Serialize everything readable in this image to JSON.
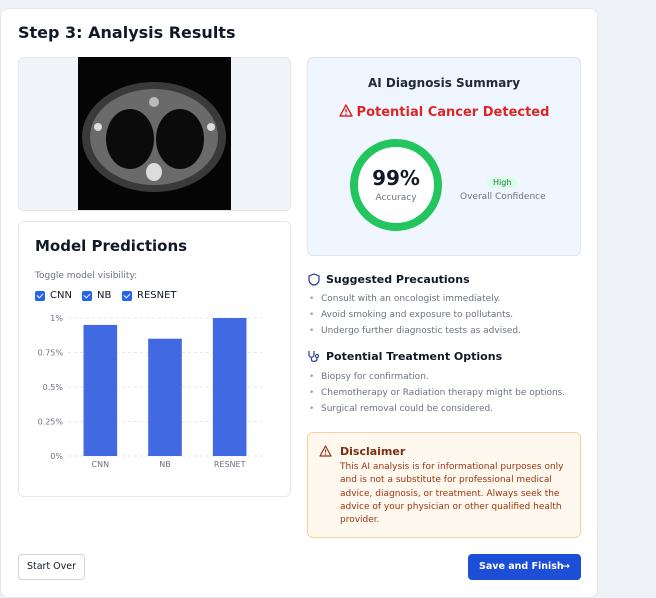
{
  "header": {
    "title": "Step 3: Analysis Results"
  },
  "summary": {
    "title": "AI Diagnosis Summary",
    "status": "Potential Cancer Detected",
    "accuracy": "99%",
    "accuracy_label": "Accuracy",
    "confidence_badge": "High",
    "confidence_label": "Overall Confidence"
  },
  "precautions": {
    "title": "Suggested Precautions",
    "items": [
      "Consult with an oncologist immediately.",
      "Avoid smoking and exposure to pollutants.",
      "Undergo further diagnostic tests as advised."
    ]
  },
  "treatments": {
    "title": "Potential Treatment Options",
    "items": [
      "Biopsy for confirmation.",
      "Chemotherapy or Radiation therapy might be options.",
      "Surgical removal could be considered."
    ]
  },
  "disclaimer": {
    "title": "Disclaimer",
    "text": "This AI analysis is for informational purposes only and is not a substitute for professional medical advice, diagnosis, or treatment. Always seek the advice of your physician or other qualified health provider."
  },
  "buttons": {
    "start_over": "Start Over",
    "save": "Save and Finish"
  },
  "chart_data": {
    "type": "bar",
    "title": "Model Predictions",
    "toggle_label": "Toggle model visibility:",
    "categories": [
      "CNN",
      "NB",
      "RESNET"
    ],
    "values": [
      0.95,
      0.85,
      1.0
    ],
    "color": "#4169e1",
    "ylim": [
      0,
      1
    ],
    "yticks": [
      {
        "value": 0,
        "label": "0%"
      },
      {
        "value": 0.25,
        "label": "0.25%"
      },
      {
        "value": 0.5,
        "label": "0.5%"
      },
      {
        "value": 0.75,
        "label": "0.75%"
      },
      {
        "value": 1,
        "label": "1%"
      }
    ],
    "grid": true
  }
}
